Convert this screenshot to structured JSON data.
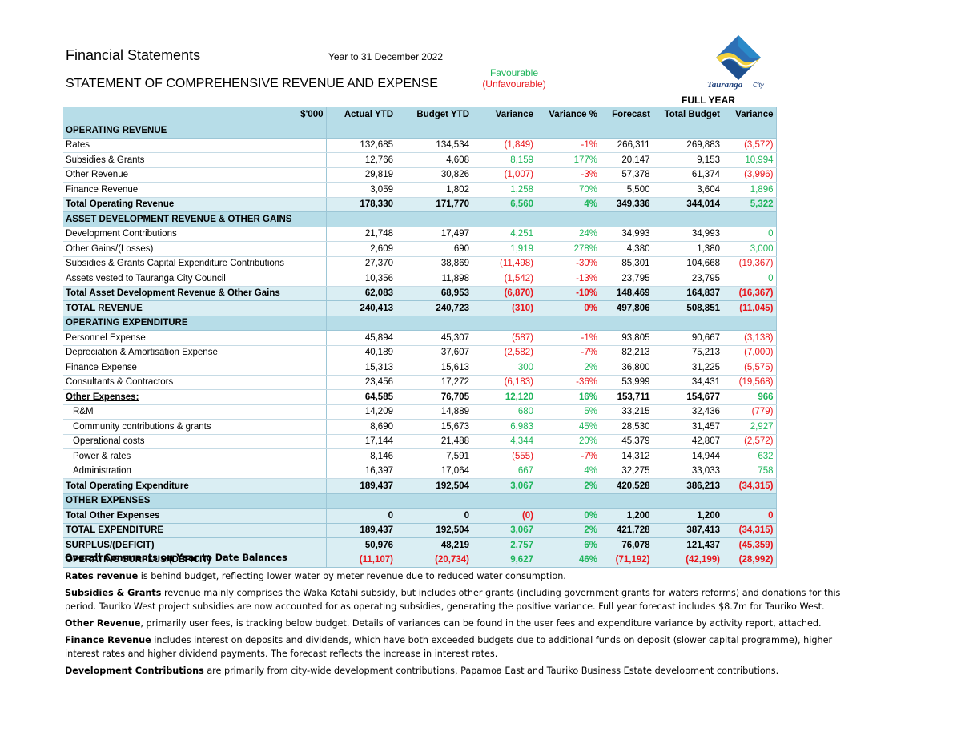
{
  "header": {
    "title": "Financial Statements",
    "period": "Year to 31 December 2022",
    "subtitle": "STATEMENT OF COMPREHENSIVE REVENUE AND EXPENSE",
    "favourable": "Favourable",
    "unfavourable": "(Unfavourable)",
    "logo_text": "Tauranga City",
    "full_year": "FULL YEAR"
  },
  "colors": {
    "positive": "#1db45a",
    "negative": "#e8151b",
    "header_fill": "#b7dde8",
    "total_fill": "#daeef3"
  },
  "columns": [
    "$'000",
    "Actual YTD",
    "Budget YTD",
    "Variance",
    "Variance %",
    "Forecast",
    "Total Budget",
    "Variance"
  ],
  "rows": [
    {
      "type": "sec",
      "label": "OPERATING REVENUE"
    },
    {
      "type": "row",
      "label": "Rates",
      "v": [
        "132,685",
        "134,534",
        "(1,849)",
        "-1%",
        "266,311",
        "269,883",
        "(3,572)"
      ],
      "s": [
        "",
        "",
        "neg",
        "neg",
        "",
        "",
        "neg"
      ]
    },
    {
      "type": "row",
      "label": "Subsidies & Grants",
      "v": [
        "12,766",
        "4,608",
        "8,159",
        "177%",
        "20,147",
        "9,153",
        "10,994"
      ],
      "s": [
        "",
        "",
        "pos",
        "pos",
        "",
        "",
        "pos"
      ]
    },
    {
      "type": "row",
      "label": "Other Revenue",
      "v": [
        "29,819",
        "30,826",
        "(1,007)",
        "-3%",
        "57,378",
        "61,374",
        "(3,996)"
      ],
      "s": [
        "",
        "",
        "neg",
        "neg",
        "",
        "",
        "neg"
      ]
    },
    {
      "type": "row",
      "label": "Finance Revenue",
      "v": [
        "3,059",
        "1,802",
        "1,258",
        "70%",
        "5,500",
        "3,604",
        "1,896"
      ],
      "s": [
        "",
        "",
        "pos",
        "pos",
        "",
        "",
        "pos"
      ]
    },
    {
      "type": "tot",
      "label": "Total Operating Revenue",
      "v": [
        "178,330",
        "171,770",
        "6,560",
        "4%",
        "349,336",
        "344,014",
        "5,322"
      ],
      "s": [
        "",
        "",
        "pos",
        "pos",
        "",
        "",
        "pos"
      ]
    },
    {
      "type": "sec",
      "label": "ASSET DEVELOPMENT REVENUE & OTHER GAINS"
    },
    {
      "type": "row",
      "label": "Development Contributions",
      "v": [
        "21,748",
        "17,497",
        "4,251",
        "24%",
        "34,993",
        "34,993",
        "0"
      ],
      "s": [
        "",
        "",
        "pos",
        "pos",
        "",
        "",
        "pos"
      ]
    },
    {
      "type": "row",
      "label": "Other Gains/(Losses)",
      "v": [
        "2,609",
        "690",
        "1,919",
        "278%",
        "4,380",
        "1,380",
        "3,000"
      ],
      "s": [
        "",
        "",
        "pos",
        "pos",
        "",
        "",
        "pos"
      ]
    },
    {
      "type": "row",
      "label": "Subsidies & Grants Capital Expenditure Contributions",
      "v": [
        "27,370",
        "38,869",
        "(11,498)",
        "-30%",
        "85,301",
        "104,668",
        "(19,367)"
      ],
      "s": [
        "",
        "",
        "neg",
        "neg",
        "",
        "",
        "neg"
      ]
    },
    {
      "type": "row",
      "label": "Assets vested to Tauranga City Council",
      "v": [
        "10,356",
        "11,898",
        "(1,542)",
        "-13%",
        "23,795",
        "23,795",
        "0"
      ],
      "s": [
        "",
        "",
        "neg",
        "neg",
        "",
        "",
        "pos"
      ]
    },
    {
      "type": "tot",
      "label": "Total Asset Development Revenue & Other Gains",
      "v": [
        "62,083",
        "68,953",
        "(6,870)",
        "-10%",
        "148,469",
        "164,837",
        "(16,367)"
      ],
      "s": [
        "",
        "",
        "neg",
        "neg",
        "",
        "",
        "neg"
      ]
    },
    {
      "type": "tot",
      "label": "TOTAL REVENUE",
      "v": [
        "240,413",
        "240,723",
        "(310)",
        "0%",
        "497,806",
        "508,851",
        "(11,045)"
      ],
      "s": [
        "",
        "",
        "neg",
        "neg",
        "",
        "",
        "neg"
      ]
    },
    {
      "type": "sec",
      "label": "OPERATING EXPENDITURE"
    },
    {
      "type": "row",
      "label": "Personnel Expense",
      "v": [
        "45,894",
        "45,307",
        "(587)",
        "-1%",
        "93,805",
        "90,667",
        "(3,138)"
      ],
      "s": [
        "",
        "",
        "neg",
        "neg",
        "",
        "",
        "neg"
      ]
    },
    {
      "type": "row",
      "label": "Depreciation & Amortisation Expense",
      "v": [
        "40,189",
        "37,607",
        "(2,582)",
        "-7%",
        "82,213",
        "75,213",
        "(7,000)"
      ],
      "s": [
        "",
        "",
        "neg",
        "neg",
        "",
        "",
        "neg"
      ]
    },
    {
      "type": "row",
      "label": "Finance Expense",
      "v": [
        "15,313",
        "15,613",
        "300",
        "2%",
        "36,800",
        "31,225",
        "(5,575)"
      ],
      "s": [
        "",
        "",
        "pos",
        "pos",
        "",
        "",
        "neg"
      ]
    },
    {
      "type": "row",
      "label": "Consultants & Contractors",
      "v": [
        "23,456",
        "17,272",
        "(6,183)",
        "-36%",
        "53,999",
        "34,431",
        "(19,568)"
      ],
      "s": [
        "",
        "",
        "neg",
        "neg",
        "",
        "",
        "neg"
      ]
    },
    {
      "type": "bold",
      "label": "Other Expenses:",
      "v": [
        "64,585",
        "76,705",
        "12,120",
        "16%",
        "153,711",
        "154,677",
        "966"
      ],
      "s": [
        "",
        "",
        "pos",
        "pos",
        "",
        "",
        "pos"
      ]
    },
    {
      "type": "sub",
      "label": "R&M",
      "v": [
        "14,209",
        "14,889",
        "680",
        "5%",
        "33,215",
        "32,436",
        "(779)"
      ],
      "s": [
        "",
        "",
        "pos",
        "pos",
        "",
        "",
        "neg"
      ]
    },
    {
      "type": "sub",
      "label": "Community contributions & grants",
      "v": [
        "8,690",
        "15,673",
        "6,983",
        "45%",
        "28,530",
        "31,457",
        "2,927"
      ],
      "s": [
        "",
        "",
        "pos",
        "pos",
        "",
        "",
        "pos"
      ]
    },
    {
      "type": "sub",
      "label": "Operational costs",
      "v": [
        "17,144",
        "21,488",
        "4,344",
        "20%",
        "45,379",
        "42,807",
        "(2,572)"
      ],
      "s": [
        "",
        "",
        "pos",
        "pos",
        "",
        "",
        "neg"
      ]
    },
    {
      "type": "sub",
      "label": "Power & rates",
      "v": [
        "8,146",
        "7,591",
        "(555)",
        "-7%",
        "14,312",
        "14,944",
        "632"
      ],
      "s": [
        "",
        "",
        "neg",
        "neg",
        "",
        "",
        "pos"
      ]
    },
    {
      "type": "sub",
      "label": "Administration",
      "v": [
        "16,397",
        "17,064",
        "667",
        "4%",
        "32,275",
        "33,033",
        "758"
      ],
      "s": [
        "",
        "",
        "pos",
        "pos",
        "",
        "",
        "pos"
      ]
    },
    {
      "type": "tot",
      "label": "Total Operating Expenditure",
      "v": [
        "189,437",
        "192,504",
        "3,067",
        "2%",
        "420,528",
        "386,213",
        "(34,315)"
      ],
      "s": [
        "",
        "",
        "pos",
        "pos",
        "",
        "",
        "neg"
      ]
    },
    {
      "type": "sec",
      "label": "OTHER EXPENSES"
    },
    {
      "type": "tot",
      "label": "Total Other Expenses",
      "v": [
        "0",
        "0",
        "(0)",
        "0%",
        "1,200",
        "1,200",
        "0"
      ],
      "s": [
        "",
        "",
        "neg",
        "pos",
        "",
        "",
        "neg"
      ]
    },
    {
      "type": "tot",
      "label": "TOTAL EXPENDITURE",
      "v": [
        "189,437",
        "192,504",
        "3,067",
        "2%",
        "421,728",
        "387,413",
        "(34,315)"
      ],
      "s": [
        "",
        "",
        "pos",
        "pos",
        "",
        "",
        "neg"
      ]
    },
    {
      "type": "tot",
      "label": "SURPLUS/(DEFICIT)",
      "v": [
        "50,976",
        "48,219",
        "2,757",
        "6%",
        "76,078",
        "121,437",
        "(45,359)"
      ],
      "s": [
        "",
        "",
        "pos",
        "pos",
        "",
        "",
        "neg"
      ]
    },
    {
      "type": "tot",
      "label": "OPERATING SURPLUS/(DEFICIT)",
      "v": [
        "(11,107)",
        "(20,734)",
        "9,627",
        "46%",
        "(71,192)",
        "(42,199)",
        "(28,992)"
      ],
      "s": [
        "neg",
        "neg",
        "pos",
        "pos",
        "neg",
        "neg",
        "neg"
      ]
    }
  ],
  "comments": {
    "heading": "Overall Comments on Year to Date Balances",
    "paragraphs": [
      {
        "bold": "Rates revenue",
        "text": " is behind budget, reflecting lower water by meter revenue due to reduced water consumption."
      },
      {
        "bold": "Subsidies & Grants",
        "text": " revenue mainly comprises the Waka Kotahi subsidy, but includes other grants (including government grants for waters reforms) and donations for this period. Tauriko West project subsidies are now accounted for as operating subsidies, generating the positive variance. Full year forecast includes $8.7m for Tauriko West."
      },
      {
        "bold": "Other Revenue",
        "text": ", primarily user fees, is tracking below budget. Details of variances can be found in the user fees and expenditure variance by activity report, attached."
      },
      {
        "bold": "Finance Revenue",
        "text": " includes interest on deposits and dividends, which have both exceeded budgets due to additional funds on deposit (slower capital programme), higher interest rates and higher dividend payments. The forecast reflects the increase in interest rates."
      },
      {
        "bold": "Development Contributions",
        "text": " are primarily from city-wide development contributions, Papamoa East and Tauriko Business Estate development contributions."
      }
    ]
  }
}
